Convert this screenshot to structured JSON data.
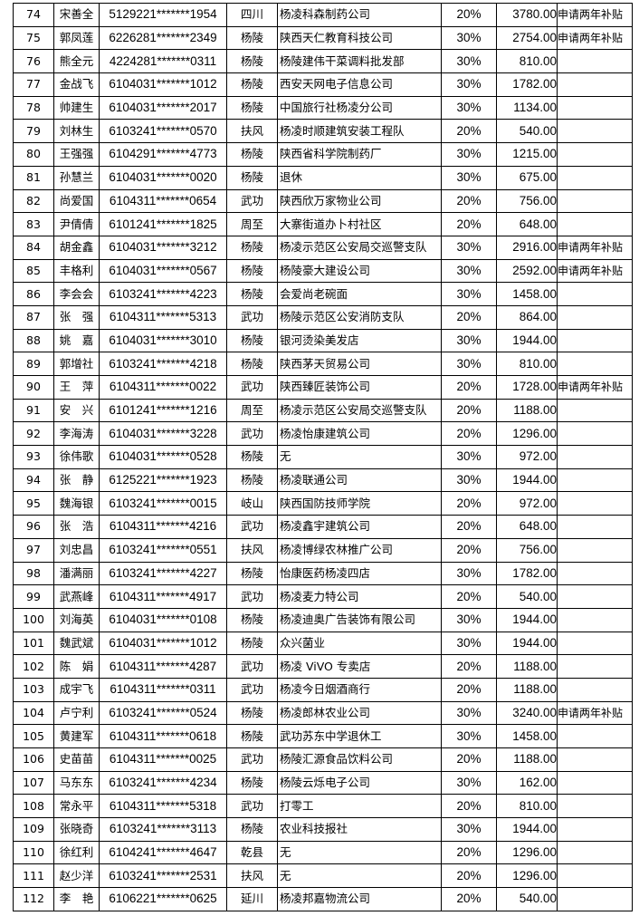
{
  "rows": [
    [
      "74",
      "宋善全",
      "5129221*******1954",
      "四川",
      "杨凌科森制药公司",
      "20%",
      "3780.00",
      "申请两年补贴"
    ],
    [
      "75",
      "郭凤莲",
      "6226281*******2349",
      "杨陵",
      "陕西天仁教育科技公司",
      "30%",
      "2754.00",
      "申请两年补贴"
    ],
    [
      "76",
      "熊全元",
      "4224281*******0311",
      "杨陵",
      "杨陵建伟干菜调料批发部",
      "30%",
      "810.00",
      ""
    ],
    [
      "77",
      "金战飞",
      "6104031*******1012",
      "杨陵",
      "西安天网电子信息公司",
      "30%",
      "1782.00",
      ""
    ],
    [
      "78",
      "帅建生",
      "6104031*******2017",
      "杨陵",
      "中国旅行社杨凌分公司",
      "30%",
      "1134.00",
      ""
    ],
    [
      "79",
      "刘林生",
      "6103241*******0570",
      "扶风",
      "杨凌时顺建筑安装工程队",
      "20%",
      "540.00",
      ""
    ],
    [
      "80",
      "王强强",
      "6104291*******4773",
      "杨陵",
      "陕西省科学院制药厂",
      "30%",
      "1215.00",
      ""
    ],
    [
      "81",
      "孙慧兰",
      "6104031*******0020",
      "杨陵",
      "退休",
      "30%",
      "675.00",
      ""
    ],
    [
      "82",
      "尚爱国",
      "6104311*******0654",
      "武功",
      "陕西欣万家物业公司",
      "20%",
      "756.00",
      ""
    ],
    [
      "83",
      "尹倩倩",
      "6101241*******1825",
      "周至",
      "大寨街道办卜村社区",
      "20%",
      "648.00",
      ""
    ],
    [
      "84",
      "胡金鑫",
      "6104031*******3212",
      "杨陵",
      "杨凌示范区公安局交巡警支队",
      "30%",
      "2916.00",
      "申请两年补贴"
    ],
    [
      "85",
      "丰格利",
      "6104031*******0567",
      "杨陵",
      "杨陵豪大建设公司",
      "30%",
      "2592.00",
      "申请两年补贴"
    ],
    [
      "86",
      "李会会",
      "6103241*******4223",
      "杨陵",
      "会爱尚老碗面",
      "30%",
      "1458.00",
      ""
    ],
    [
      "87",
      "张　强",
      "6104311*******5313",
      "武功",
      "杨陵示范区公安消防支队",
      "20%",
      "864.00",
      ""
    ],
    [
      "88",
      "姚　嘉",
      "6104031*******3010",
      "杨陵",
      "银河烫染美发店",
      "30%",
      "1944.00",
      ""
    ],
    [
      "89",
      "郭增社",
      "6103241*******4218",
      "杨陵",
      "陕西茅天贸易公司",
      "30%",
      "810.00",
      ""
    ],
    [
      "90",
      "王　萍",
      "6104311*******0022",
      "武功",
      "陕西臻匠装饰公司",
      "20%",
      "1728.00",
      "申请两年补贴"
    ],
    [
      "91",
      "安　兴",
      "6101241*******1216",
      "周至",
      "杨凌示范区公安局交巡警支队",
      "20%",
      "1188.00",
      ""
    ],
    [
      "92",
      "李海涛",
      "6104031*******3228",
      "武功",
      "杨凌怡康建筑公司",
      "20%",
      "1296.00",
      ""
    ],
    [
      "93",
      "徐伟歌",
      "6104031*******0528",
      "杨陵",
      "无",
      "30%",
      "972.00",
      ""
    ],
    [
      "94",
      "张　静",
      "6125221*******1923",
      "杨陵",
      "杨凌联通公司",
      "30%",
      "1944.00",
      ""
    ],
    [
      "95",
      "魏海银",
      "6103241*******0015",
      "岐山",
      "陕西国防技师学院",
      "20%",
      "972.00",
      ""
    ],
    [
      "96",
      "张　浩",
      "6104311*******4216",
      "武功",
      "杨凌鑫宇建筑公司",
      "20%",
      "648.00",
      ""
    ],
    [
      "97",
      "刘忠昌",
      "6103241*******0551",
      "扶风",
      "杨凌博绿农林推广公司",
      "20%",
      "756.00",
      ""
    ],
    [
      "98",
      "潘满丽",
      "6103241*******4227",
      "杨陵",
      "怡康医药杨凌四店",
      "30%",
      "1782.00",
      ""
    ],
    [
      "99",
      "武燕峰",
      "6104311*******4917",
      "武功",
      "杨凌麦力特公司",
      "20%",
      "540.00",
      ""
    ],
    [
      "100",
      "刘海英",
      "6104031*******0108",
      "杨陵",
      "杨凌迪奥广告装饰有限公司",
      "30%",
      "1944.00",
      ""
    ],
    [
      "101",
      "魏武斌",
      "6104031*******1012",
      "杨陵",
      "众兴菌业",
      "30%",
      "1944.00",
      ""
    ],
    [
      "102",
      "陈　娟",
      "6104311*******4287",
      "武功",
      "杨凌 ViVO 专卖店",
      "20%",
      "1188.00",
      ""
    ],
    [
      "103",
      "成宇飞",
      "6104311*******0311",
      "武功",
      "杨凌今日烟酒商行",
      "20%",
      "1188.00",
      ""
    ],
    [
      "104",
      "卢宁利",
      "6103241*******0524",
      "杨陵",
      "杨凌郎林农业公司",
      "30%",
      "3240.00",
      "申请两年补贴"
    ],
    [
      "105",
      "黄建军",
      "6104311*******0618",
      "杨陵",
      "武功苏东中学退休工",
      "30%",
      "1458.00",
      ""
    ],
    [
      "106",
      "史苗苗",
      "6104311*******0025",
      "武功",
      "杨陵汇源食品饮料公司",
      "20%",
      "1188.00",
      ""
    ],
    [
      "107",
      "马东东",
      "6103241*******4234",
      "杨陵",
      "杨陵云烁电子公司",
      "30%",
      "162.00",
      ""
    ],
    [
      "108",
      "常永平",
      "6104311*******5318",
      "武功",
      "打零工",
      "20%",
      "810.00",
      ""
    ],
    [
      "109",
      "张晓奇",
      "6103241*******3113",
      "杨陵",
      "农业科技报社",
      "30%",
      "1944.00",
      ""
    ],
    [
      "110",
      "徐红利",
      "6104241*******4647",
      "乾县",
      "无",
      "20%",
      "1296.00",
      ""
    ],
    [
      "111",
      "赵少洋",
      "6103241*******2531",
      "扶风",
      "无",
      "20%",
      "1296.00",
      ""
    ],
    [
      "112",
      "李　艳",
      "6106221*******0625",
      "延川",
      "杨凌邦嘉物流公司",
      "20%",
      "540.00",
      ""
    ]
  ]
}
